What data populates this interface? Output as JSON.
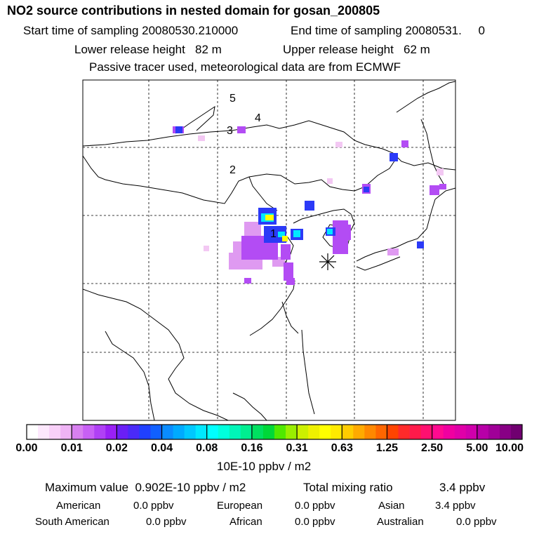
{
  "title": "NO2 source contributions in nested domain for gosan_200805",
  "sampling": {
    "start_label": "Start time of sampling 20080530.210000",
    "end_label": "End time of sampling 20080531.     0"
  },
  "release": {
    "lower_label": "Lower release height   82 m",
    "upper_label": "Upper release height   62 m"
  },
  "note": "Passive tracer used, meteorological data are from ECMWF",
  "map": {
    "region_labels": [
      "1",
      "2",
      "3",
      "4",
      "5"
    ],
    "receptor_marker": "asterisk-icon",
    "plume_color": "#a020f0",
    "core_colors": [
      "#0000ff",
      "#00ffff",
      "#ffff00"
    ]
  },
  "colorbar": {
    "ticks": [
      "0.00",
      "0.01",
      "0.02",
      "0.04",
      "0.08",
      "0.16",
      "0.31",
      "0.63",
      "1.25",
      "2.50",
      "5.00",
      "10.00"
    ],
    "colors": [
      "#ffffff",
      "#fde8fd",
      "#f8d0f8",
      "#efb4f5",
      "#d880f0",
      "#c860f5",
      "#b040f5",
      "#9a20f5",
      "#6a1ff5",
      "#4a2af8",
      "#2040ff",
      "#1060ff",
      "#0a8cff",
      "#00aaff",
      "#00c8ff",
      "#00e8ff",
      "#00ffff",
      "#00ffdd",
      "#00f5b8",
      "#00ee90",
      "#00e060",
      "#00d838",
      "#50e800",
      "#9aee00",
      "#ccf000",
      "#eef000",
      "#ffff00",
      "#ffea00",
      "#ffcc00",
      "#ffaa00",
      "#ff8800",
      "#ff6600",
      "#ff4400",
      "#ff2a2a",
      "#ff1a4a",
      "#ff1070",
      "#ff0a90",
      "#f000a0",
      "#e000a8",
      "#d000ac",
      "#b800a8",
      "#a00098",
      "#880085",
      "#700070"
    ],
    "unit": "10E-10 ppbv / m2"
  },
  "stats": {
    "max_label": "Maximum value  0.902E-10 ppbv / m2",
    "total_label": "Total mixing ratio",
    "total_value": "3.4 ppbv",
    "regions": [
      {
        "name": "American",
        "value": "0.0 ppbv"
      },
      {
        "name": "European",
        "value": "0.0 ppbv"
      },
      {
        "name": "Asian",
        "value": "3.4 ppbv"
      },
      {
        "name": "South American",
        "value": "0.0 ppbv"
      },
      {
        "name": "African",
        "value": "0.0 ppbv"
      },
      {
        "name": "Australian",
        "value": "0.0 ppbv"
      }
    ]
  }
}
